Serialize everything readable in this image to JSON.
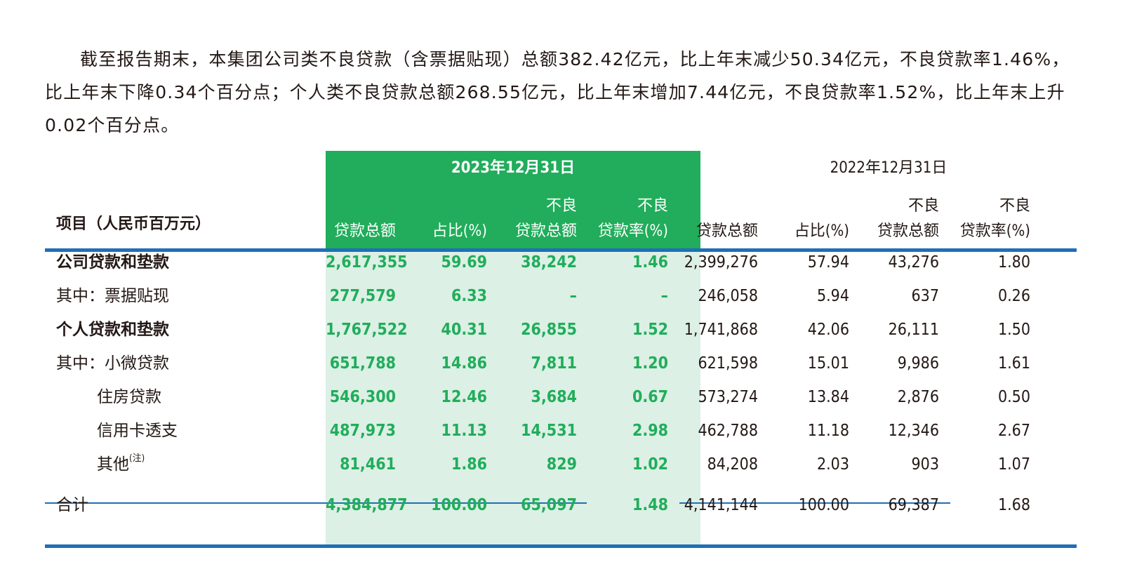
{
  "paragraph": "截至报告期末，本集团公司类不良贷款（含票据贴现）总额382.42亿元，比上年末减少50.34亿元，不良贷款率1.46%，比上年末下降0.34个百分点；个人类不良贷款总额268.55亿元，比上年末增加7.44亿元，不良贷款率1.52%，比上年末上升0.02个百分点。",
  "table": {
    "item_header": "项目（人民币百万元）",
    "period_2023": "2023年12月31日",
    "period_2022": "2022年12月31日",
    "columns_2023": [
      {
        "line1": "",
        "line2": "贷款总额"
      },
      {
        "line1": "",
        "line2": "占比(%)"
      },
      {
        "line1": "不良",
        "line2": "贷款总额"
      },
      {
        "line1": "不良",
        "line2": "贷款率(%)"
      }
    ],
    "columns_2022": [
      {
        "line1": "",
        "line2": "贷款总额"
      },
      {
        "line1": "",
        "line2": "占比(%)"
      },
      {
        "line1": "不良",
        "line2": "贷款总额"
      },
      {
        "line1": "不良",
        "line2": "贷款率(%)"
      }
    ],
    "rows": [
      {
        "label": "公司贷款和垫款",
        "note": "",
        "v2023": [
          "2,617,355",
          "59.69",
          "38,242",
          "1.46"
        ],
        "v2022": [
          "2,399,276",
          "57.94",
          "43,276",
          "1.80"
        ]
      },
      {
        "label": "其中：票据贴现",
        "note": "",
        "v2023": [
          "277,579",
          "6.33",
          "–",
          "–"
        ],
        "v2022": [
          "246,058",
          "5.94",
          "637",
          "0.26"
        ]
      },
      {
        "label": "个人贷款和垫款",
        "note": "",
        "v2023": [
          "1,767,522",
          "40.31",
          "26,855",
          "1.52"
        ],
        "v2022": [
          "1,741,868",
          "42.06",
          "26,111",
          "1.50"
        ]
      },
      {
        "label": "其中：小微贷款",
        "note": "",
        "v2023": [
          "651,788",
          "14.86",
          "7,811",
          "1.20"
        ],
        "v2022": [
          "621,598",
          "15.01",
          "9,986",
          "1.61"
        ]
      },
      {
        "label": "住房贷款",
        "note": "",
        "v2023": [
          "546,300",
          "12.46",
          "3,684",
          "0.67"
        ],
        "v2022": [
          "573,274",
          "13.84",
          "2,876",
          "0.50"
        ]
      },
      {
        "label": "信用卡透支",
        "note": "",
        "v2023": [
          "487,973",
          "11.13",
          "14,531",
          "2.98"
        ],
        "v2022": [
          "462,788",
          "11.18",
          "12,346",
          "2.67"
        ]
      },
      {
        "label": "其他",
        "note": "(注)",
        "v2023": [
          "81,461",
          "1.86",
          "829",
          "1.02"
        ],
        "v2022": [
          "84,208",
          "2.03",
          "903",
          "1.07"
        ]
      }
    ],
    "total": {
      "label": "合计",
      "v2023": [
        "4,384,877",
        "100.00",
        "65,097",
        "1.48"
      ],
      "v2022": [
        "4,141,144",
        "100.00",
        "69,387",
        "1.68"
      ]
    }
  }
}
